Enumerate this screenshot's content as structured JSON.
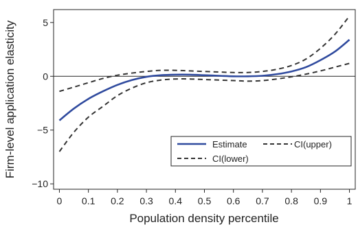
{
  "chart_data": {
    "type": "line",
    "xlabel": "Population density percentile",
    "ylabel": "Firm-level application elasticity",
    "xlim": [
      -0.02,
      1.02
    ],
    "ylim": [
      -10.5,
      6.2
    ],
    "x_ticks": [
      0,
      0.1,
      0.2,
      0.3,
      0.4,
      0.5,
      0.6,
      0.7,
      0.8,
      0.9,
      1
    ],
    "x_tick_labels": [
      "0",
      "0.1",
      "0.2",
      "0.3",
      "0.4",
      "0.5",
      "0.6",
      "0.7",
      "0.8",
      "0.9",
      "1"
    ],
    "y_ticks": [
      -10,
      -5,
      0,
      5
    ],
    "y_tick_labels": [
      "−10",
      "−5",
      "0",
      "5"
    ],
    "reference_line_y": 0,
    "grid": false,
    "legend_position": "lower-right",
    "x": [
      0,
      0.05,
      0.1,
      0.15,
      0.2,
      0.25,
      0.3,
      0.35,
      0.4,
      0.45,
      0.5,
      0.55,
      0.6,
      0.65,
      0.7,
      0.75,
      0.8,
      0.85,
      0.9,
      0.95,
      1
    ],
    "series": [
      {
        "name": "Estimate",
        "style": "solid",
        "color": "#2f4a9e",
        "values": [
          -4.1,
          -3.0,
          -2.1,
          -1.4,
          -0.8,
          -0.35,
          -0.05,
          0.1,
          0.15,
          0.15,
          0.1,
          0.05,
          0.0,
          0.0,
          0.05,
          0.2,
          0.45,
          0.85,
          1.5,
          2.3,
          3.4
        ]
      },
      {
        "name": "CI(upper)",
        "style": "dashed",
        "color": "#333333",
        "values": [
          -1.4,
          -1.0,
          -0.6,
          -0.2,
          0.1,
          0.3,
          0.45,
          0.55,
          0.55,
          0.5,
          0.45,
          0.4,
          0.35,
          0.35,
          0.45,
          0.65,
          1.0,
          1.6,
          2.6,
          3.9,
          5.6
        ]
      },
      {
        "name": "CI(lower)",
        "style": "dashed",
        "color": "#333333",
        "values": [
          -7.0,
          -5.2,
          -3.8,
          -2.8,
          -1.8,
          -1.1,
          -0.6,
          -0.35,
          -0.25,
          -0.25,
          -0.3,
          -0.35,
          -0.4,
          -0.45,
          -0.4,
          -0.25,
          -0.05,
          0.2,
          0.5,
          0.85,
          1.2
        ]
      }
    ]
  }
}
